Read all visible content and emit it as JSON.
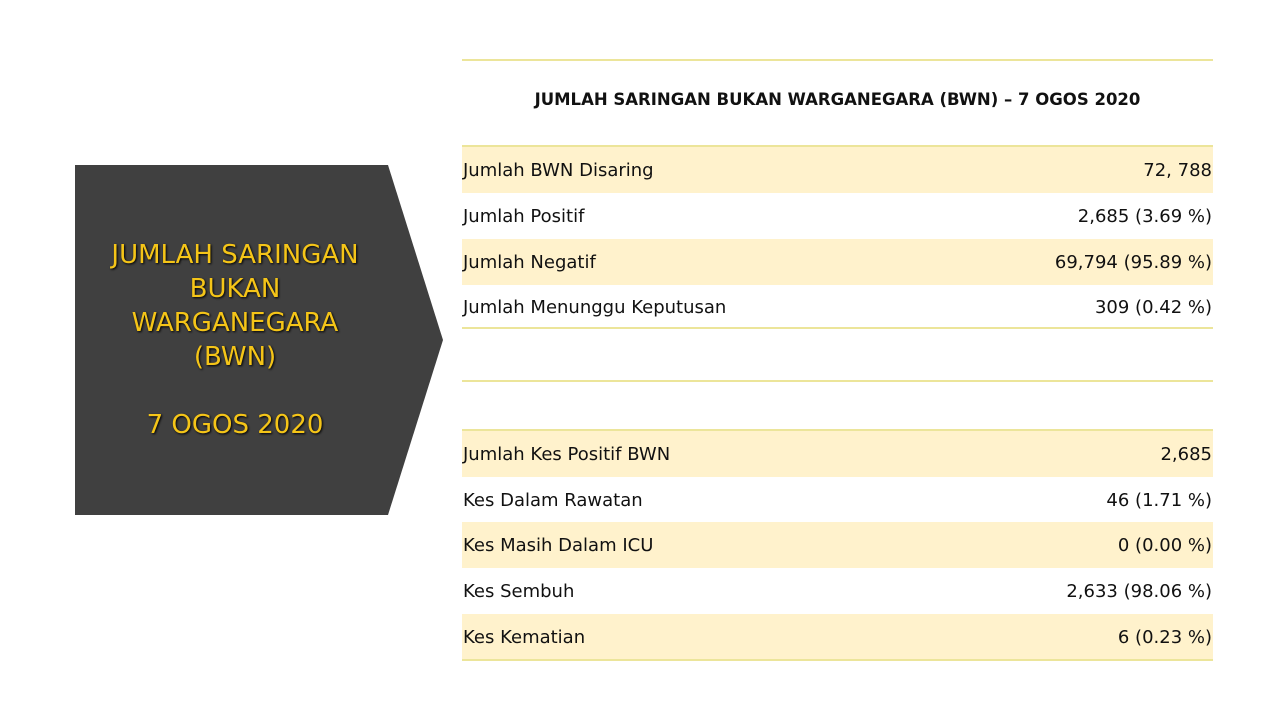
{
  "banner": {
    "title_lines": [
      "JUMLAH SARINGAN",
      "BUKAN",
      "WARGANEGARA",
      "(BWN)"
    ],
    "date": "7 OGOS 2020",
    "bg_color": "#404040",
    "text_color": "#f5c518"
  },
  "table1": {
    "title": "JUMLAH SARINGAN BUKAN WARGANEGARA (BWN) –  7 OGOS 2020",
    "rows": [
      {
        "label": "Jumlah BWN Disaring",
        "value": "72, 788"
      },
      {
        "label": "Jumlah Positif",
        "value": "2,685 (3.69 %)"
      },
      {
        "label": "Jumlah Negatif",
        "value": "69,794 (95.89 %)"
      },
      {
        "label": "Jumlah Menunggu Keputusan",
        "value": "309 (0.42 %)"
      }
    ]
  },
  "table2": {
    "rows": [
      {
        "label": "Jumlah Kes Positif BWN",
        "value": "2,685"
      },
      {
        "label": "Kes Dalam Rawatan",
        "value": "46 (1.71 %)"
      },
      {
        "label": "Kes Masih Dalam ICU",
        "value": "0 (0.00 %)"
      },
      {
        "label": "Kes Sembuh",
        "value": "2,633 (98.06 %)"
      },
      {
        "label": "Kes Kematian",
        "value": "6 (0.23 %)"
      }
    ]
  },
  "colors": {
    "row_shade": "#fff2cc",
    "rule": "#ece59a"
  }
}
